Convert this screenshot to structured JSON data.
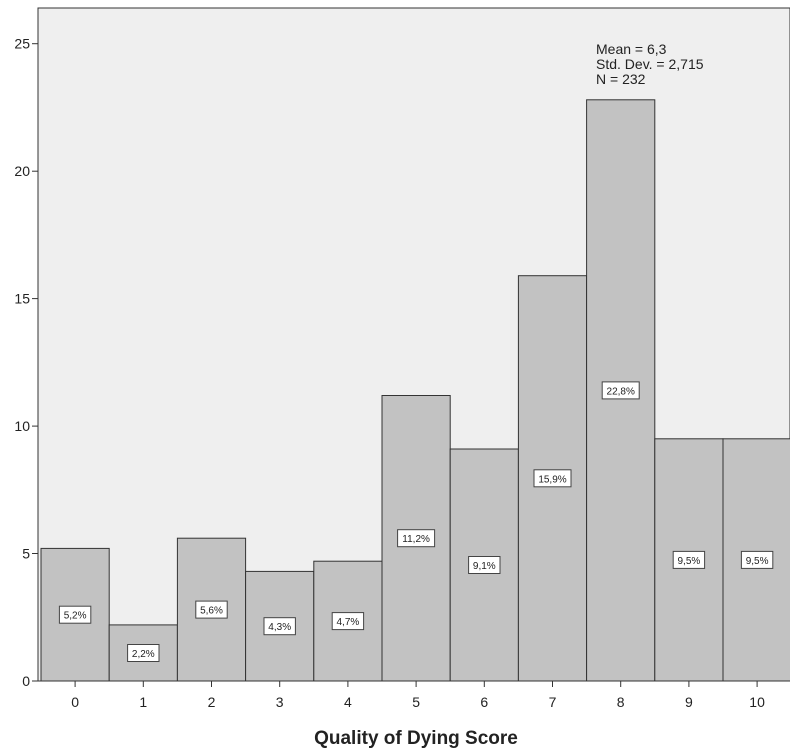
{
  "chart_data": {
    "type": "bar",
    "xlabel": "Quality of Dying Score",
    "ylabel": "",
    "ylim": [
      0,
      26.4
    ],
    "yticks": [
      0,
      5,
      10,
      15,
      20,
      25
    ],
    "categories": [
      "0",
      "1",
      "2",
      "3",
      "4",
      "5",
      "6",
      "7",
      "8",
      "9",
      "10"
    ],
    "values": [
      5.2,
      2.2,
      5.6,
      4.3,
      4.7,
      11.2,
      9.1,
      15.9,
      22.8,
      9.5,
      9.5
    ],
    "data_labels": [
      "5,2%",
      "2,2%",
      "5,6%",
      "4,3%",
      "4,7%",
      "11,2%",
      "9,1%",
      "15,9%",
      "22,8%",
      "9,5%",
      "9,5%"
    ],
    "stats": [
      "Mean = 6,3",
      "Std. Dev. = 2,715",
      "N = 232"
    ],
    "grid": false,
    "colors": {
      "plot_background": "#efefef",
      "bar_fill": "#c2c2c2",
      "bar_stroke": "#333333",
      "axis": "#333333",
      "label_box": "#ffffff"
    }
  }
}
